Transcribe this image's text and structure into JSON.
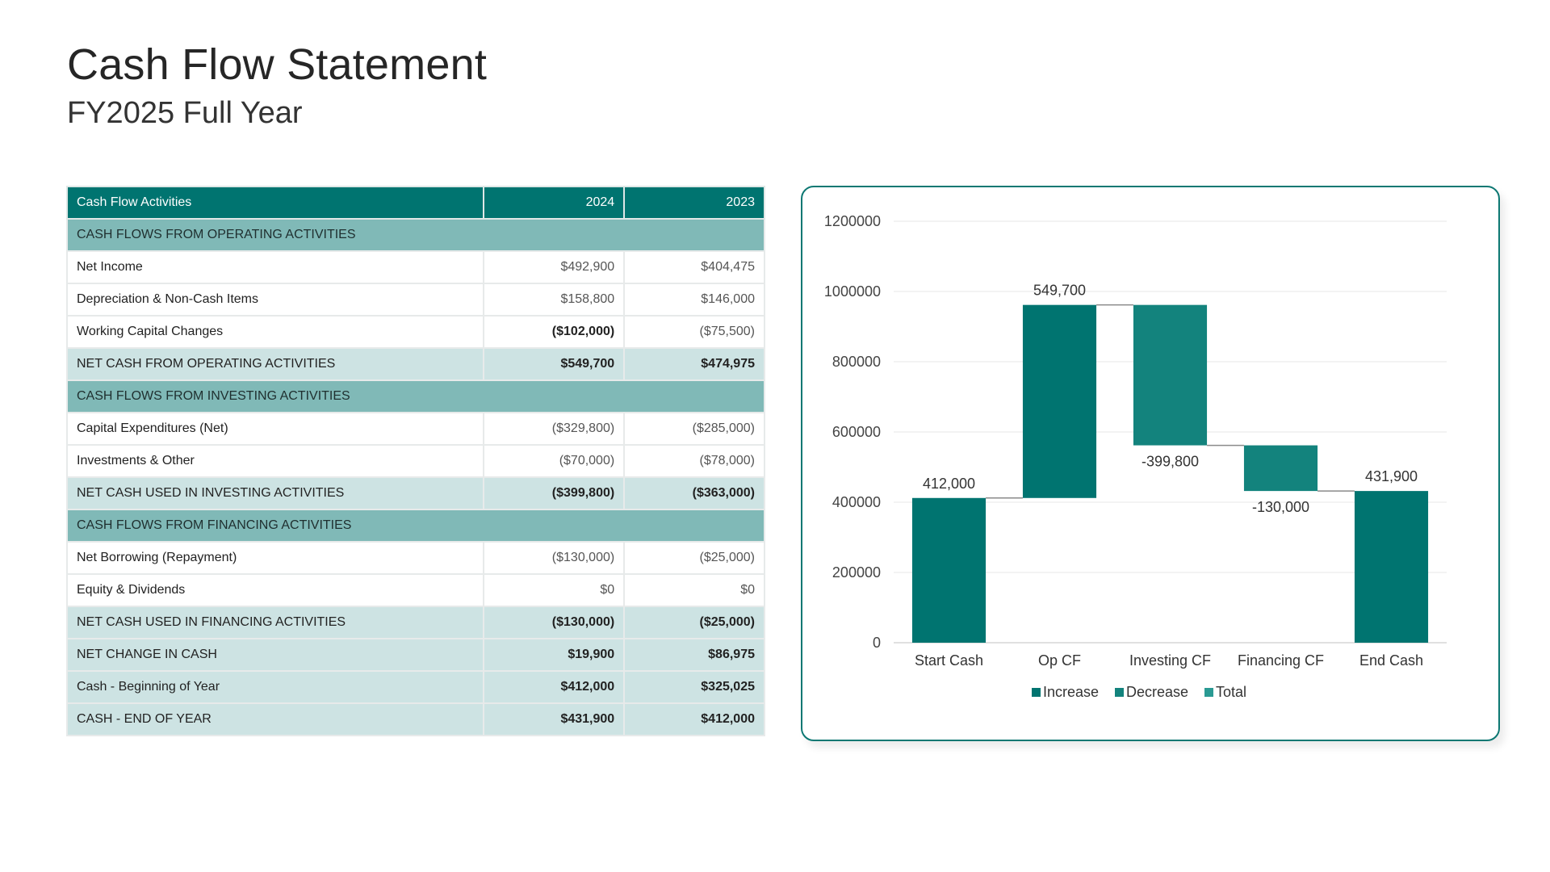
{
  "header": {
    "title": "Cash Flow Statement",
    "subtitle": "FY2025 Full Year"
  },
  "table": {
    "columns": [
      "Cash Flow Activities",
      "2024",
      "2023"
    ],
    "rows": [
      {
        "type": "section",
        "label": "CASH FLOWS FROM OPERATING ACTIVITIES"
      },
      {
        "type": "item",
        "label": "Net Income",
        "v2024": "$492,900",
        "v2023": "$404,475",
        "bold2024": false,
        "bold2023": false
      },
      {
        "type": "item",
        "label": "Depreciation & Non-Cash Items",
        "v2024": "$158,800",
        "v2023": "$146,000",
        "bold2024": false,
        "bold2023": false
      },
      {
        "type": "item",
        "label": "Working Capital Changes",
        "v2024": "($102,000)",
        "v2023": "($75,500)",
        "bold2024": true,
        "bold2023": false
      },
      {
        "type": "subtotal",
        "label": "NET CASH FROM OPERATING ACTIVITIES",
        "v2024": "$549,700",
        "v2023": "$474,975",
        "bold2024": true,
        "bold2023": true
      },
      {
        "type": "section",
        "label": "CASH FLOWS FROM INVESTING ACTIVITIES"
      },
      {
        "type": "item",
        "label": "Capital Expenditures (Net)",
        "v2024": "($329,800)",
        "v2023": "($285,000)",
        "bold2024": false,
        "bold2023": false
      },
      {
        "type": "item",
        "label": "Investments & Other",
        "v2024": "($70,000)",
        "v2023": "($78,000)",
        "bold2024": false,
        "bold2023": false
      },
      {
        "type": "subtotal",
        "label": "NET CASH USED IN INVESTING ACTIVITIES",
        "v2024": "($399,800)",
        "v2023": "($363,000)",
        "bold2024": true,
        "bold2023": true
      },
      {
        "type": "section",
        "label": "CASH FLOWS FROM FINANCING ACTIVITIES"
      },
      {
        "type": "item",
        "label": "Net Borrowing (Repayment)",
        "v2024": "($130,000)",
        "v2023": "($25,000)",
        "bold2024": false,
        "bold2023": false
      },
      {
        "type": "item",
        "label": "Equity & Dividends",
        "v2024": "$0",
        "v2023": "$0",
        "bold2024": false,
        "bold2023": false
      },
      {
        "type": "subtotal",
        "label": "NET CASH USED IN FINANCING ACTIVITIES",
        "v2024": "($130,000)",
        "v2023": "($25,000)",
        "bold2024": true,
        "bold2023": true
      },
      {
        "type": "subtotal",
        "label": "NET CHANGE IN CASH",
        "v2024": "$19,900",
        "v2023": "$86,975",
        "bold2024": true,
        "bold2023": true
      },
      {
        "type": "subtotal",
        "label": "Cash - Beginning of Year",
        "v2024": "$412,000",
        "v2023": "$325,025",
        "bold2024": true,
        "bold2023": true
      },
      {
        "type": "subtotal",
        "label": "CASH - END OF YEAR",
        "v2024": "$431,900",
        "v2023": "$412,000",
        "bold2024": true,
        "bold2023": true
      }
    ]
  },
  "colors": {
    "increase": "#007470",
    "decrease": "#13837d",
    "total": "#2a9a93",
    "header": "#007470",
    "section": "#80b9b7",
    "subtotal": "#cde3e3",
    "card_border": "#0d7873"
  },
  "chart_data": {
    "type": "waterfall",
    "title": "",
    "xlabel": "",
    "ylabel": "",
    "categories": [
      "Start Cash",
      "Op CF",
      "Investing CF",
      "Financing CF",
      "End Cash"
    ],
    "values": [
      412000,
      549700,
      -399800,
      -130000,
      431900
    ],
    "bar_types": [
      "increase",
      "increase",
      "decrease",
      "decrease",
      "increase"
    ],
    "data_labels": [
      "412,000",
      "549,700",
      "-399,800",
      "-130,000",
      "431,900"
    ],
    "ylim": [
      0,
      1200000
    ],
    "yticks": [
      0,
      200000,
      400000,
      600000,
      800000,
      1000000,
      1200000
    ],
    "ytick_labels": [
      "0",
      "200000",
      "400000",
      "600000",
      "800000",
      "1000000",
      "1200000"
    ],
    "grid": true,
    "connectors": true,
    "legend": {
      "position": "bottom",
      "entries": [
        {
          "name": "Increase",
          "key": "increase"
        },
        {
          "name": "Decrease",
          "key": "decrease"
        },
        {
          "name": "Total",
          "key": "total"
        }
      ]
    }
  }
}
